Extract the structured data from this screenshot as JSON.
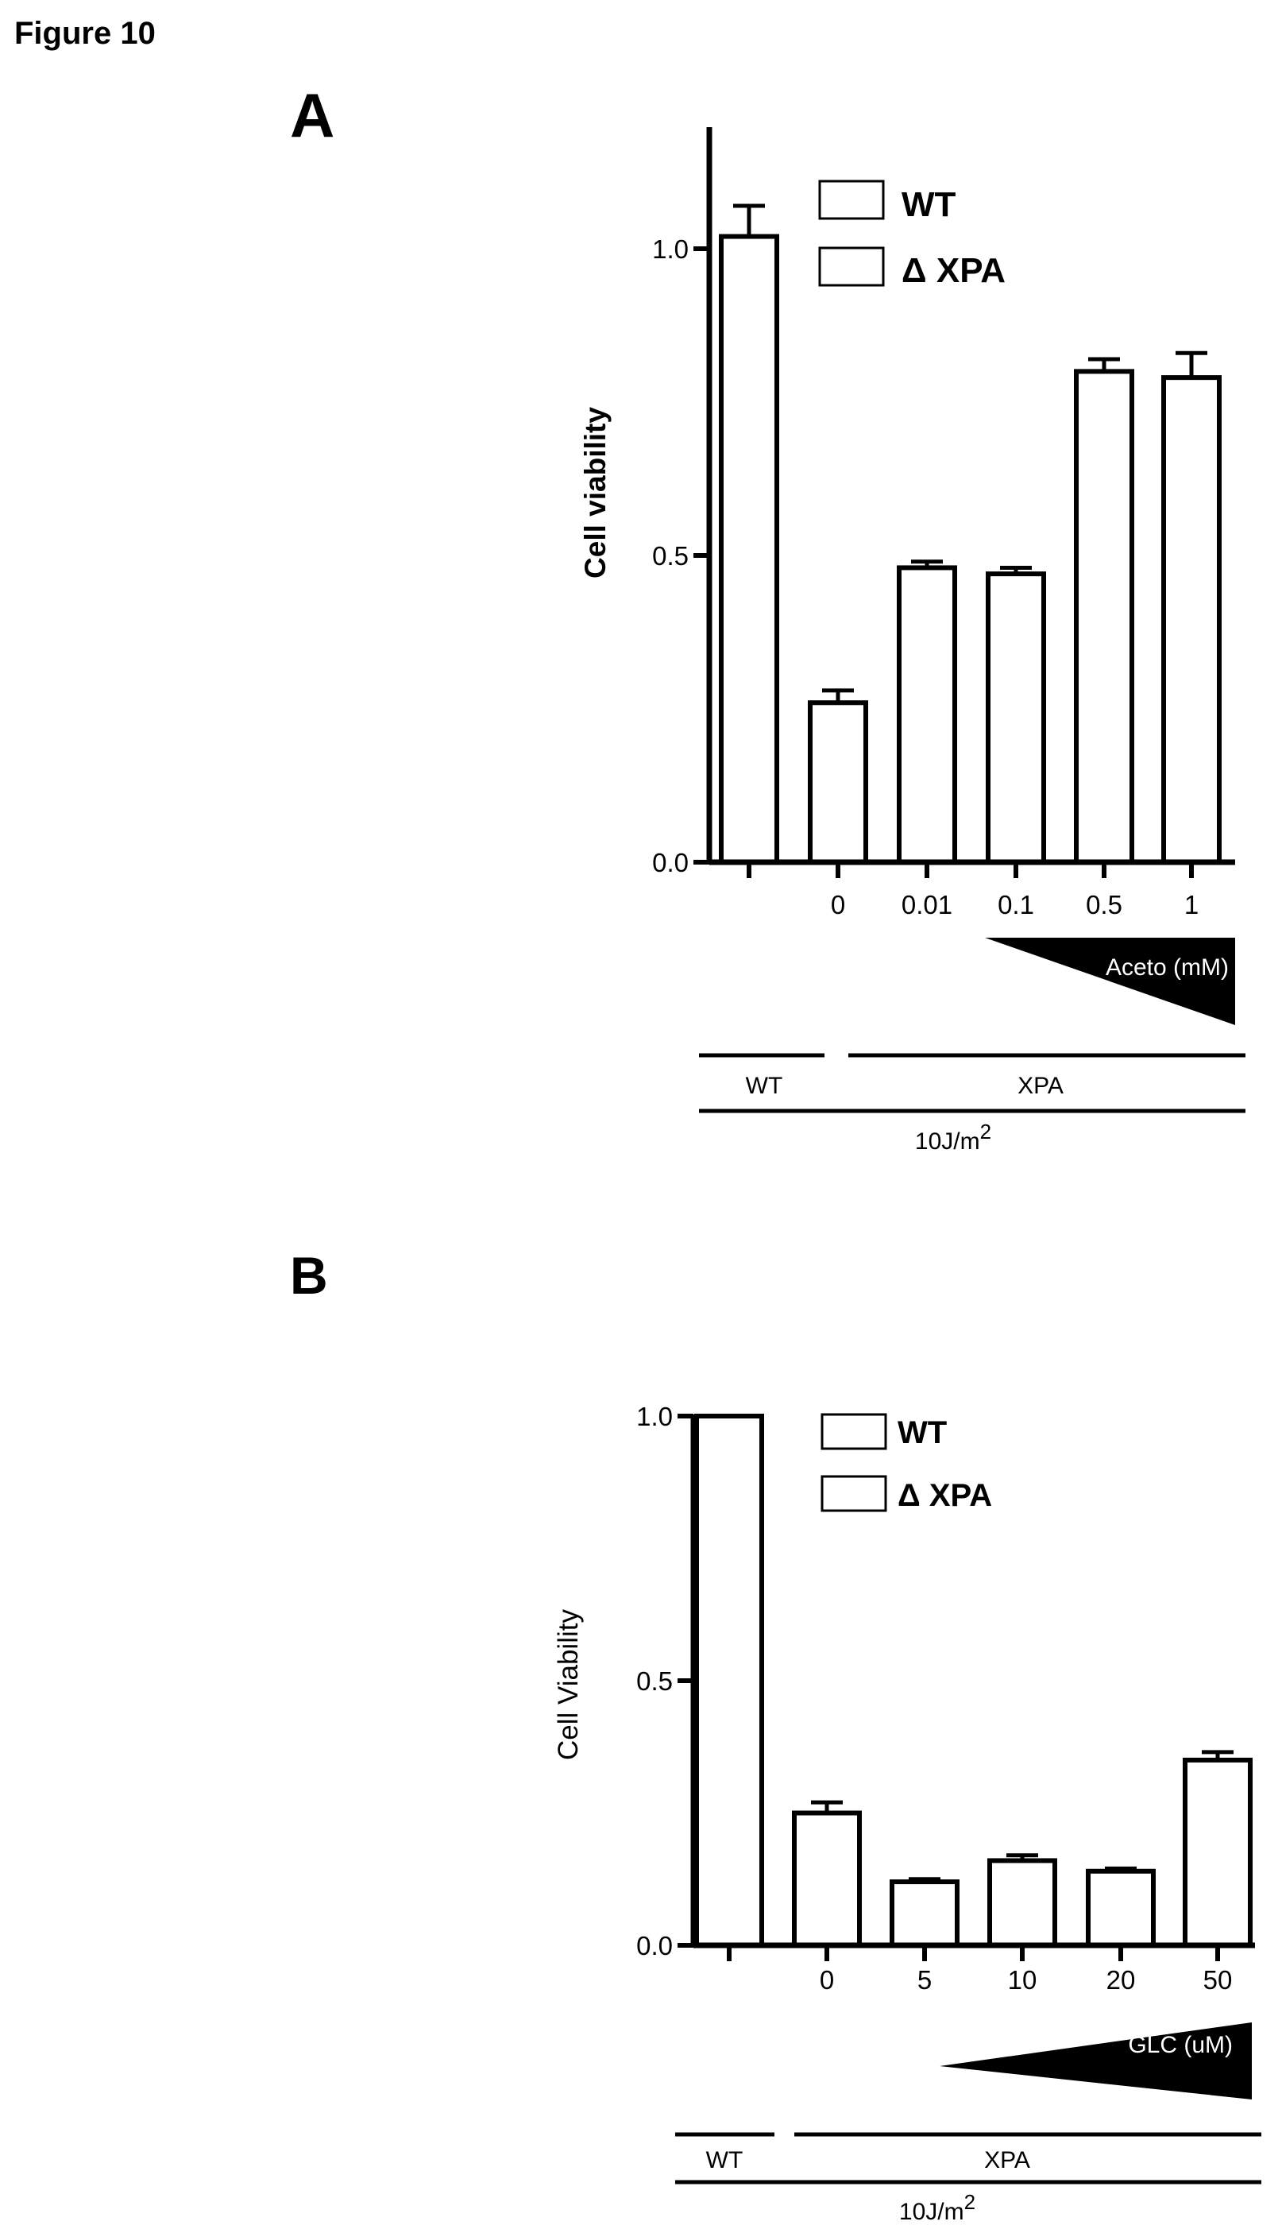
{
  "figure_title": "Figure 10",
  "chart_data": [
    {
      "panel": "A",
      "type": "bar",
      "ylabel": "Cell viability",
      "ylim": [
        0,
        1.2
      ],
      "yticks": [
        "0.0",
        "0.5",
        "1.0"
      ],
      "categories": [
        "",
        "0",
        "0.01",
        "0.1",
        "0.5",
        "1"
      ],
      "values": [
        1.02,
        0.26,
        0.48,
        0.47,
        0.8,
        0.79
      ],
      "errors": [
        0.05,
        0.02,
        0.01,
        0.01,
        0.02,
        0.04
      ],
      "legend": [
        "WT",
        "Δ XPA"
      ],
      "legend_position": "top-right",
      "grid": false,
      "dose_label": "Aceto (mM)",
      "groups": [
        "WT",
        "XPA"
      ],
      "treatment": "10J/m",
      "treatment_sup": "2"
    },
    {
      "panel": "B",
      "type": "bar",
      "ylabel": "Cell Viability",
      "ylim": [
        0,
        1.0
      ],
      "yticks": [
        "0.0",
        "0.5",
        "1.0"
      ],
      "categories": [
        "",
        "0",
        "5",
        "10",
        "20",
        "50"
      ],
      "values": [
        1.0,
        0.25,
        0.12,
        0.16,
        0.14,
        0.35
      ],
      "errors": [
        0.0,
        0.02,
        0.005,
        0.01,
        0.005,
        0.015
      ],
      "legend": [
        "WT",
        "Δ XPA"
      ],
      "legend_position": "top-right",
      "grid": false,
      "dose_label": "GLC (uM)",
      "groups": [
        "WT",
        "XPA"
      ],
      "treatment": "10J/m",
      "treatment_sup": "2"
    }
  ]
}
